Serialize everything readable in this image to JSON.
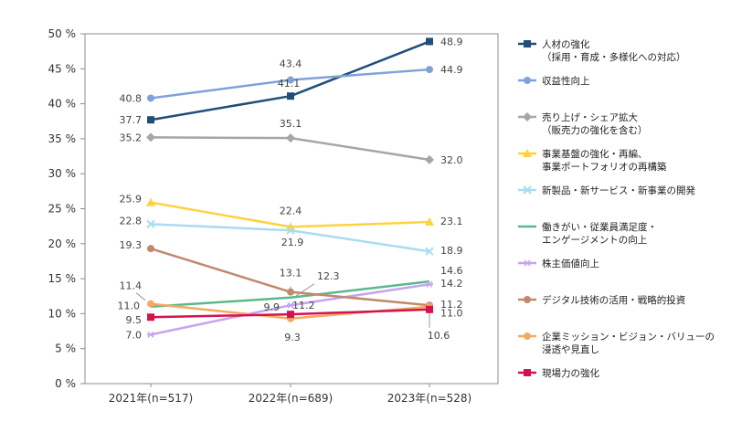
{
  "chart_data": {
    "type": "line",
    "title": "",
    "xlabel": "",
    "ylabel": "",
    "categories": [
      "2021年(n=517)",
      "2022年(n=689)",
      "2023年(n=528)"
    ],
    "ylim": [
      0,
      50
    ],
    "y_ticks": [
      {
        "value": 0,
        "label": "0 %"
      },
      {
        "value": 5,
        "label": "5 %"
      },
      {
        "value": 10,
        "label": "10 %"
      },
      {
        "value": 15,
        "label": "15 %"
      },
      {
        "value": 20,
        "label": "20 %"
      },
      {
        "value": 25,
        "label": "25 %"
      },
      {
        "value": 30,
        "label": "30 %"
      },
      {
        "value": 35,
        "label": "35 %"
      },
      {
        "value": 40,
        "label": "40 %"
      },
      {
        "value": 45,
        "label": "45 %"
      },
      {
        "value": 50,
        "label": "50 %"
      }
    ],
    "grid": false,
    "legend_position": "right",
    "series": [
      {
        "name_lines": [
          "人材の強化",
          "（採用・育成・多様化への対応）"
        ],
        "color": "#1f4e79",
        "marker": "square",
        "values": [
          37.7,
          41.1,
          48.9
        ],
        "labels": [
          "37.7",
          "41.1",
          "48.9"
        ]
      },
      {
        "name_lines": [
          "収益性向上"
        ],
        "color": "#7fa2d8",
        "marker": "circle",
        "values": [
          40.8,
          43.4,
          44.9
        ],
        "labels": [
          "40.8",
          "43.4",
          "44.9"
        ]
      },
      {
        "name_lines": [
          "売り上げ・シェア拡大",
          "（販売力の強化を含む）"
        ],
        "color": "#a6a6a6",
        "marker": "diamond",
        "values": [
          35.2,
          35.1,
          32.0
        ],
        "labels": [
          "35.2",
          "35.1",
          "32.0"
        ]
      },
      {
        "name_lines": [
          "事業基盤の強化・再編、",
          "事業ポートフォリオの再構築"
        ],
        "color": "#ffd23f",
        "marker": "triangle",
        "values": [
          25.9,
          22.4,
          23.1
        ],
        "labels": [
          "25.9",
          "22.4",
          "23.1"
        ]
      },
      {
        "name_lines": [
          "新製品・新サービス・新事業の開発"
        ],
        "color": "#a9dcf0",
        "marker": "x",
        "values": [
          22.8,
          21.9,
          18.9
        ],
        "labels": [
          "22.8",
          "21.9",
          "18.9"
        ]
      },
      {
        "name_lines": [
          "働きがい・従業員満足度・",
          "エンゲージメントの向上"
        ],
        "color": "#5cb88c",
        "marker": "none",
        "values": [
          11.0,
          12.3,
          14.6
        ],
        "labels": [
          "11.0",
          "12.3",
          "14.6"
        ]
      },
      {
        "name_lines": [
          "株主価値向上"
        ],
        "color": "#c5a6ee",
        "marker": "star",
        "values": [
          7.0,
          11.2,
          14.2
        ],
        "labels": [
          "7.0",
          "11.2",
          "14.2"
        ]
      },
      {
        "name_lines": [
          "デジタル技術の活用・戦略的投資"
        ],
        "color": "#c08a6c",
        "marker": "circle",
        "values": [
          19.3,
          13.1,
          11.2
        ],
        "labels": [
          "19.3",
          "13.1",
          "11.2"
        ]
      },
      {
        "name_lines": [
          "企業ミッション・ビジョン・バリューの",
          "浸透や見直し"
        ],
        "color": "#f5a962",
        "marker": "circle",
        "values": [
          11.4,
          9.3,
          11.0
        ],
        "labels": [
          "11.4",
          "9.3",
          "11.0"
        ]
      },
      {
        "name_lines": [
          "現場力の強化"
        ],
        "color": "#d3134f",
        "marker": "square",
        "values": [
          9.5,
          9.9,
          10.6
        ],
        "labels": [
          "9.5",
          "9.9",
          "10.6"
        ]
      }
    ]
  }
}
